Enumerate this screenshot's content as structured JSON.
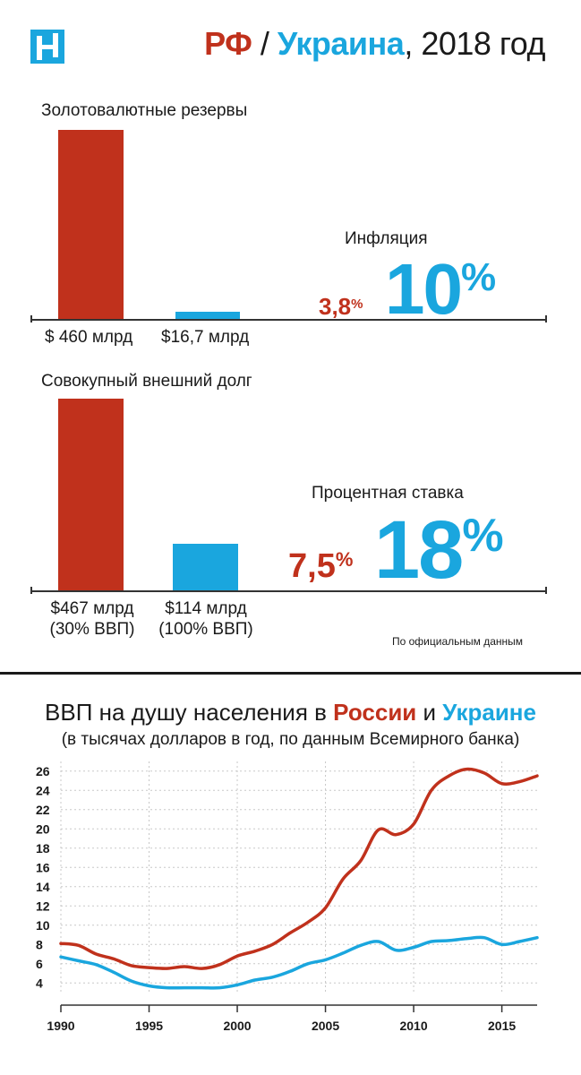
{
  "header": {
    "title_ru": "РФ",
    "title_sep": " / ",
    "title_ua": "Украина",
    "title_year": ", 2018 год"
  },
  "reserves": {
    "label": "Золотовалютные резервы",
    "ru_value": "$ 460 млрд",
    "ua_value": "$16,7 млрд"
  },
  "inflation": {
    "label": "Инфляция",
    "ru_value": "3,8",
    "ru_unit": "%",
    "ua_value": "10",
    "ua_unit": "%"
  },
  "debt": {
    "label": "Совокупный внешний долг",
    "ru_value": "$467 млрд",
    "ru_share": "(30% ВВП)",
    "ua_value": "$114 млрд",
    "ua_share": "(100% ВВП)"
  },
  "rate": {
    "label": "Процентная ставка",
    "ru_value": "7,5",
    "ru_unit": "%",
    "ua_value": "18",
    "ua_unit": "%"
  },
  "note": "По официальным данным",
  "colors": {
    "russia": "#c0311c",
    "ukraine": "#1aa6de"
  },
  "chart_data": [
    {
      "type": "bar",
      "categories": [
        "РФ",
        "Украина"
      ],
      "values": [
        460,
        16.7
      ],
      "data_labels": [
        "$ 460 млрд",
        "$16,7 млрд"
      ],
      "title": "Золотовалютные резервы"
    },
    {
      "type": "bar",
      "categories": [
        "РФ",
        "Украина"
      ],
      "values": [
        467,
        114
      ],
      "data_labels": [
        "$467 млрд (30% ВВП)",
        "$114 млрд (100% ВВП)"
      ],
      "title": "Совокупный внешний долг"
    },
    {
      "type": "line",
      "title_parts": [
        "ВВП на душу населения в ",
        "России",
        " и ",
        "Украине"
      ],
      "subtitle": "(в тысячах долларов в год, по данным Всемирного банка)",
      "xlim": [
        1990,
        2017
      ],
      "ylim": [
        3,
        27
      ],
      "x_ticks": [
        1990,
        1995,
        2000,
        2005,
        2010,
        2015
      ],
      "y_ticks": [
        4,
        6,
        8,
        10,
        12,
        14,
        16,
        18,
        20,
        22,
        24,
        26
      ],
      "grid": true,
      "series": [
        {
          "name": "России",
          "color": "#c0311c",
          "x": [
            1990,
            1991,
            1992,
            1993,
            1994,
            1995,
            1996,
            1997,
            1998,
            1999,
            2000,
            2001,
            2002,
            2003,
            2004,
            2005,
            2006,
            2007,
            2008,
            2009,
            2010,
            2011,
            2012,
            2013,
            2014,
            2015,
            2016,
            2017
          ],
          "y": [
            8.1,
            7.9,
            7.0,
            6.5,
            5.8,
            5.6,
            5.5,
            5.7,
            5.5,
            5.9,
            6.8,
            7.3,
            8.0,
            9.2,
            10.3,
            11.8,
            14.8,
            16.7,
            19.9,
            19.4,
            20.5,
            24.0,
            25.5,
            26.2,
            25.8,
            24.7,
            24.9,
            25.5
          ]
        },
        {
          "name": "Украине",
          "color": "#1aa6de",
          "x": [
            1990,
            1991,
            1992,
            1993,
            1994,
            1995,
            1996,
            1997,
            1998,
            1999,
            2000,
            2001,
            2002,
            2003,
            2004,
            2005,
            2006,
            2007,
            2008,
            2009,
            2010,
            2011,
            2012,
            2013,
            2014,
            2015,
            2016,
            2017
          ],
          "y": [
            6.7,
            6.3,
            5.9,
            5.1,
            4.2,
            3.7,
            3.5,
            3.5,
            3.5,
            3.5,
            3.8,
            4.3,
            4.6,
            5.2,
            6.0,
            6.4,
            7.1,
            7.9,
            8.3,
            7.4,
            7.7,
            8.3,
            8.4,
            8.6,
            8.7,
            8.0,
            8.3,
            8.7
          ]
        }
      ]
    }
  ]
}
